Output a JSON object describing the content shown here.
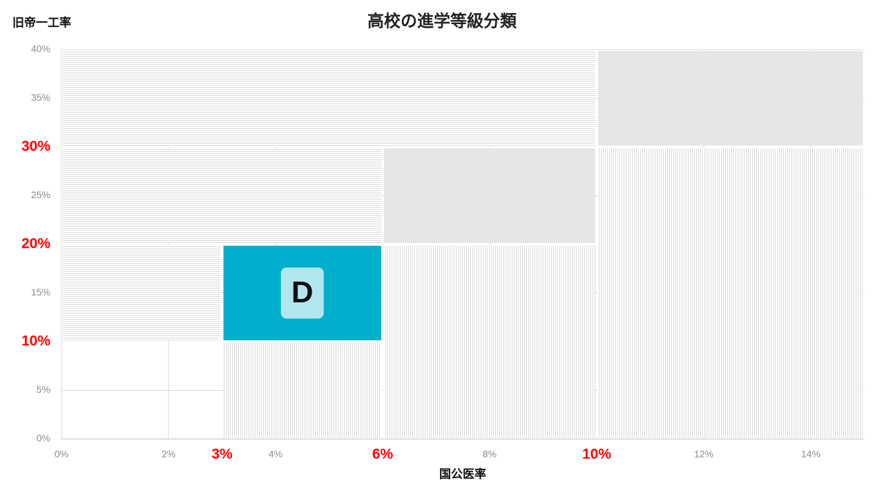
{
  "chart_data": {
    "type": "region",
    "title": "高校の進学等級分類",
    "xlabel": "国公医率",
    "ylabel": "旧帝一工率",
    "xlim": [
      0,
      15
    ],
    "ylim": [
      0,
      40
    ],
    "xticks": [
      {
        "value": 0,
        "label": "0%"
      },
      {
        "value": 2,
        "label": "2%"
      },
      {
        "value": 4,
        "label": "4%"
      },
      {
        "value": 8,
        "label": "8%"
      },
      {
        "value": 12,
        "label": "12%"
      },
      {
        "value": 14,
        "label": "14%"
      }
    ],
    "yticks": [
      {
        "value": 0,
        "label": "0%"
      },
      {
        "value": 5,
        "label": "5%"
      },
      {
        "value": 15,
        "label": "15%"
      },
      {
        "value": 25,
        "label": "25%"
      },
      {
        "value": 35,
        "label": "35%"
      },
      {
        "value": 40,
        "label": "40%"
      }
    ],
    "x_highlight_ticks": [
      {
        "value": 3,
        "label": "3%"
      },
      {
        "value": 6,
        "label": "6%"
      },
      {
        "value": 10,
        "label": "10%"
      }
    ],
    "y_highlight_ticks": [
      {
        "value": 10,
        "label": "10%"
      },
      {
        "value": 20,
        "label": "20%"
      },
      {
        "value": 30,
        "label": "30%"
      }
    ],
    "highlight_color": "#ff0000",
    "grid": true,
    "regions": [
      {
        "x": [
          0,
          10
        ],
        "y": [
          30,
          40
        ],
        "pattern": "horizontal"
      },
      {
        "x": [
          0,
          6
        ],
        "y": [
          20,
          30
        ],
        "pattern": "horizontal"
      },
      {
        "x": [
          0,
          3
        ],
        "y": [
          10,
          20
        ],
        "pattern": "horizontal"
      },
      {
        "x": [
          3,
          6
        ],
        "y": [
          0,
          10
        ],
        "pattern": "vertical"
      },
      {
        "x": [
          6,
          10
        ],
        "y": [
          0,
          20
        ],
        "pattern": "vertical"
      },
      {
        "x": [
          10,
          15
        ],
        "y": [
          0,
          30
        ],
        "pattern": "vertical"
      },
      {
        "x": [
          3,
          6
        ],
        "y": [
          10,
          20
        ],
        "color": "#00b0cc",
        "label": "D",
        "label_color": "#b2e6ef"
      },
      {
        "x": [
          6,
          10
        ],
        "y": [
          20,
          30
        ],
        "color": "#e6e6e6"
      },
      {
        "x": [
          10,
          15
        ],
        "y": [
          30,
          40
        ],
        "color": "#e6e6e6"
      }
    ]
  }
}
